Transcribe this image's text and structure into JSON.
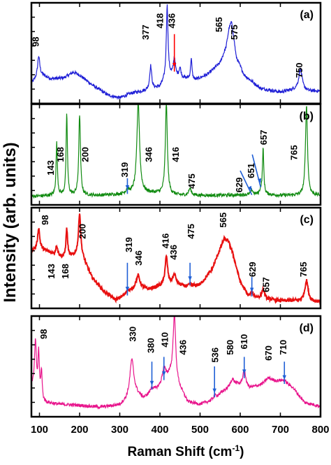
{
  "chart_data": {
    "type": "line",
    "xlabel": "Raman Shift (cm",
    "xlabel_sup": "-1",
    "xlabel_end": ")",
    "ylabel": "Intensity (arb. units)",
    "xlim": [
      80,
      800
    ],
    "xticks": [
      "100",
      "200",
      "300",
      "400",
      "500",
      "600",
      "700",
      "800"
    ],
    "xtick_values": [
      100,
      200,
      300,
      400,
      500,
      600,
      700,
      800
    ],
    "panels": [
      {
        "label": "(a)",
        "color": "#1f1fd6",
        "ylim": [
          0,
          1
        ],
        "baseline": [
          [
            80,
            0.18
          ],
          [
            100,
            0.28
          ],
          [
            130,
            0.23
          ],
          [
            160,
            0.24
          ],
          [
            185,
            0.3
          ],
          [
            200,
            0.27
          ],
          [
            230,
            0.17
          ],
          [
            270,
            0.06
          ],
          [
            300,
            0.03
          ],
          [
            330,
            0.08
          ],
          [
            370,
            0.11
          ],
          [
            400,
            0.14
          ],
          [
            420,
            0.26
          ],
          [
            450,
            0.24
          ],
          [
            490,
            0.22
          ],
          [
            520,
            0.28
          ],
          [
            550,
            0.4
          ],
          [
            565,
            0.57
          ],
          [
            572,
            0.76
          ],
          [
            578,
            0.83
          ],
          [
            583,
            0.7
          ],
          [
            590,
            0.46
          ],
          [
            610,
            0.27
          ],
          [
            650,
            0.13
          ],
          [
            700,
            0.09
          ],
          [
            740,
            0.12
          ],
          [
            770,
            0.1
          ],
          [
            800,
            0.1
          ]
        ],
        "peaks": [
          [
            98,
            0.2,
            3
          ],
          [
            377,
            0.25,
            3
          ],
          [
            418,
            0.75,
            2.5
          ],
          [
            436,
            0.2,
            3
          ],
          [
            450,
            0.1,
            3
          ],
          [
            478,
            0.22,
            2
          ],
          [
            750,
            0.22,
            5
          ]
        ],
        "labels": [
          {
            "text": "98",
            "x": 98,
            "y": 0.62
          },
          {
            "text": "377",
            "x": 372,
            "y": 0.72
          },
          {
            "text": "418",
            "x": 408,
            "y": 0.84
          },
          {
            "text": "436",
            "x": 437,
            "y": 0.84
          },
          {
            "text": "565",
            "x": 555,
            "y": 0.8
          },
          {
            "text": "575",
            "x": 593,
            "y": 0.72
          },
          {
            "text": "750",
            "x": 755,
            "y": 0.32
          }
        ],
        "arrows": [
          {
            "x": 436,
            "from": 0.7,
            "to": 0.35,
            "color": "#ff0000"
          }
        ]
      },
      {
        "label": "(b)",
        "color": "#118b11",
        "ylim": [
          0,
          1
        ],
        "baseline": [
          [
            80,
            0.06
          ],
          [
            150,
            0.07
          ],
          [
            250,
            0.07
          ],
          [
            300,
            0.08
          ],
          [
            340,
            0.1
          ],
          [
            400,
            0.09
          ],
          [
            450,
            0.07
          ],
          [
            550,
            0.07
          ],
          [
            650,
            0.08
          ],
          [
            700,
            0.07
          ],
          [
            800,
            0.07
          ]
        ],
        "peaks": [
          [
            143,
            0.55,
            2
          ],
          [
            168,
            0.85,
            2
          ],
          [
            200,
            0.85,
            2.5
          ],
          [
            319,
            0.05,
            3
          ],
          [
            346,
            0.95,
            4
          ],
          [
            416,
            0.95,
            3
          ],
          [
            475,
            0.07,
            4
          ],
          [
            629,
            0.05,
            3
          ],
          [
            651,
            0.04,
            3
          ],
          [
            657,
            0.48,
            2
          ],
          [
            765,
            0.95,
            3
          ]
        ],
        "labels": [
          {
            "text": "143",
            "x": 136,
            "y": 0.36
          },
          {
            "text": "168",
            "x": 160,
            "y": 0.5
          },
          {
            "text": "200",
            "x": 222,
            "y": 0.5
          },
          {
            "text": "319",
            "x": 320,
            "y": 0.34
          },
          {
            "text": "346",
            "x": 380,
            "y": 0.5
          },
          {
            "text": "416",
            "x": 447,
            "y": 0.5
          },
          {
            "text": "475",
            "x": 487,
            "y": 0.22
          },
          {
            "text": "629",
            "x": 605,
            "y": 0.18
          },
          {
            "text": "651",
            "x": 635,
            "y": 0.33
          },
          {
            "text": "657",
            "x": 666,
            "y": 0.68
          },
          {
            "text": "765",
            "x": 742,
            "y": 0.52
          }
        ],
        "arrows": [
          {
            "x": 319,
            "from": 0.25,
            "to": 0.13,
            "color": "#1f5fd6"
          },
          {
            "x": 629,
            "from": 0.33,
            "to": 0.12,
            "color": "#1f5fd6",
            "x_from": 600
          },
          {
            "x": 651,
            "from": 0.5,
            "to": 0.2,
            "color": "#1f5fd6",
            "x_from": 630
          }
        ]
      },
      {
        "label": "(c)",
        "color": "#e81010",
        "ylim": [
          0,
          1
        ],
        "baseline": [
          [
            80,
            0.58
          ],
          [
            100,
            0.6
          ],
          [
            130,
            0.55
          ],
          [
            160,
            0.5
          ],
          [
            185,
            0.52
          ],
          [
            200,
            0.58
          ],
          [
            230,
            0.3
          ],
          [
            260,
            0.15
          ],
          [
            290,
            0.06
          ],
          [
            320,
            0.12
          ],
          [
            340,
            0.2
          ],
          [
            370,
            0.17
          ],
          [
            400,
            0.2
          ],
          [
            440,
            0.22
          ],
          [
            470,
            0.19
          ],
          [
            500,
            0.22
          ],
          [
            530,
            0.38
          ],
          [
            550,
            0.6
          ],
          [
            560,
            0.7
          ],
          [
            570,
            0.68
          ],
          [
            580,
            0.57
          ],
          [
            600,
            0.25
          ],
          [
            620,
            0.1
          ],
          [
            660,
            0.07
          ],
          [
            700,
            0.05
          ],
          [
            740,
            0.05
          ],
          [
            780,
            0.04
          ],
          [
            800,
            0.04
          ]
        ],
        "peaks": [
          [
            98,
            0.22,
            3
          ],
          [
            143,
            0.1,
            3
          ],
          [
            168,
            0.3,
            2.5
          ],
          [
            200,
            0.4,
            3
          ],
          [
            319,
            0.05,
            4
          ],
          [
            346,
            0.12,
            5
          ],
          [
            416,
            0.3,
            4
          ],
          [
            436,
            0.1,
            5
          ],
          [
            475,
            0.03,
            5
          ],
          [
            629,
            0.05,
            4
          ],
          [
            657,
            0.1,
            4
          ],
          [
            765,
            0.22,
            5
          ]
        ],
        "labels": [
          {
            "text": "98",
            "x": 122,
            "y": 0.9
          },
          {
            "text": "143",
            "x": 137,
            "y": 0.36
          },
          {
            "text": "168",
            "x": 172,
            "y": 0.36
          },
          {
            "text": "200",
            "x": 215,
            "y": 0.78
          },
          {
            "text": "319",
            "x": 330,
            "y": 0.64
          },
          {
            "text": "346",
            "x": 355,
            "y": 0.5
          },
          {
            "text": "416",
            "x": 422,
            "y": 0.68
          },
          {
            "text": "436",
            "x": 442,
            "y": 0.56
          },
          {
            "text": "475",
            "x": 485,
            "y": 0.78
          },
          {
            "text": "565",
            "x": 565,
            "y": 0.9
          },
          {
            "text": "629",
            "x": 638,
            "y": 0.38
          },
          {
            "text": "657",
            "x": 672,
            "y": 0.22
          },
          {
            "text": "765",
            "x": 765,
            "y": 0.38
          }
        ],
        "arrows": [
          {
            "x": 319,
            "from": 0.45,
            "to": 0.15,
            "color": "#1f5fd6"
          },
          {
            "x": 475,
            "from": 0.45,
            "to": 0.26,
            "color": "#1f5fd6"
          },
          {
            "x": 629,
            "from": 0.3,
            "to": 0.14,
            "color": "#1f5fd6"
          }
        ]
      },
      {
        "label": "(d)",
        "color": "#e8148c",
        "ylim": [
          0,
          1
        ],
        "baseline": [
          [
            80,
            0.3
          ],
          [
            90,
            0.2
          ],
          [
            110,
            0.12
          ],
          [
            150,
            0.1
          ],
          [
            200,
            0.09
          ],
          [
            250,
            0.07
          ],
          [
            300,
            0.09
          ],
          [
            320,
            0.14
          ],
          [
            340,
            0.2
          ],
          [
            360,
            0.16
          ],
          [
            380,
            0.22
          ],
          [
            400,
            0.28
          ],
          [
            425,
            0.4
          ],
          [
            450,
            0.26
          ],
          [
            470,
            0.12
          ],
          [
            500,
            0.1
          ],
          [
            530,
            0.14
          ],
          [
            560,
            0.24
          ],
          [
            590,
            0.3
          ],
          [
            620,
            0.26
          ],
          [
            650,
            0.3
          ],
          [
            680,
            0.34
          ],
          [
            700,
            0.34
          ],
          [
            730,
            0.28
          ],
          [
            760,
            0.12
          ],
          [
            800,
            0.08
          ]
        ],
        "peaks": [
          [
            90,
            0.55,
            3
          ],
          [
            98,
            0.45,
            2
          ],
          [
            105,
            0.3,
            2
          ],
          [
            330,
            0.4,
            6
          ],
          [
            380,
            0.05,
            5
          ],
          [
            410,
            0.15,
            5
          ],
          [
            436,
            0.7,
            4
          ],
          [
            536,
            0.03,
            5
          ],
          [
            580,
            0.08,
            6
          ],
          [
            610,
            0.18,
            5
          ],
          [
            670,
            0.05,
            8
          ],
          [
            710,
            0.03,
            8
          ]
        ],
        "labels": [
          {
            "text": "98",
            "x": 118,
            "y": 0.84
          },
          {
            "text": "330",
            "x": 340,
            "y": 0.84
          },
          {
            "text": "380",
            "x": 385,
            "y": 0.72
          },
          {
            "text": "410",
            "x": 420,
            "y": 0.78
          },
          {
            "text": "436",
            "x": 465,
            "y": 0.7
          },
          {
            "text": "536",
            "x": 545,
            "y": 0.62
          },
          {
            "text": "580",
            "x": 583,
            "y": 0.7
          },
          {
            "text": "610",
            "x": 617,
            "y": 0.76
          },
          {
            "text": "670",
            "x": 678,
            "y": 0.64
          },
          {
            "text": "710",
            "x": 715,
            "y": 0.7
          }
        ],
        "arrows": [
          {
            "x": 380,
            "from": 0.55,
            "to": 0.3,
            "color": "#1f5fd6"
          },
          {
            "x": 410,
            "from": 0.6,
            "to": 0.4,
            "color": "#1f5fd6"
          },
          {
            "x": 536,
            "from": 0.5,
            "to": 0.22,
            "color": "#1f5fd6"
          },
          {
            "x": 610,
            "from": 0.6,
            "to": 0.42,
            "color": "#1f5fd6"
          },
          {
            "x": 710,
            "from": 0.55,
            "to": 0.36,
            "color": "#1f5fd6"
          }
        ]
      }
    ]
  }
}
